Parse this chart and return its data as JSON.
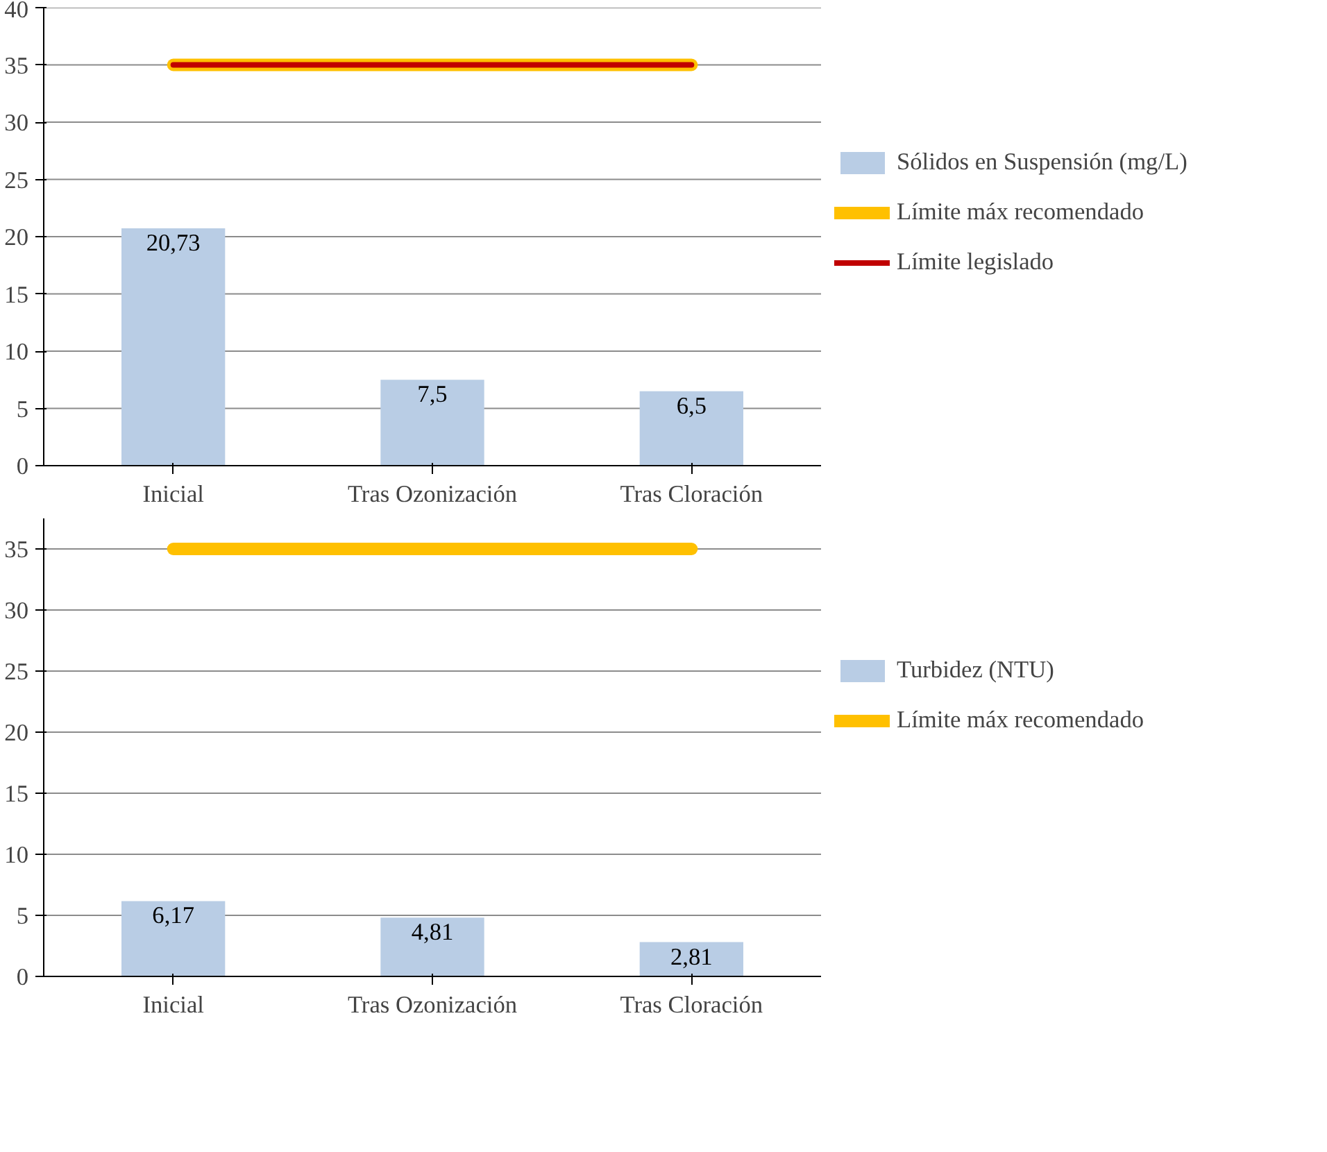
{
  "chart_data": [
    {
      "type": "bar",
      "categories": [
        "Inicial",
        "Tras Ozonización",
        "Tras Cloración"
      ],
      "ylim": [
        0,
        40
      ],
      "yticks": [
        0,
        5,
        10,
        15,
        20,
        25,
        30,
        35,
        40
      ],
      "grid": "y",
      "legend": "right",
      "series": [
        {
          "name": "Sólidos en Suspensión (mg/L)",
          "color": "#b9cde5",
          "values": [
            20.73,
            7.5,
            6.5
          ],
          "value_labels": [
            "20,73",
            "7,5",
            "6,5"
          ]
        },
        {
          "type": "line",
          "name": "Límite máx recomendado",
          "color": "#ffc000",
          "values": [
            35,
            35,
            35
          ]
        },
        {
          "type": "line",
          "name": "Límite legislado",
          "color": "#c00000",
          "values": [
            35,
            35,
            35
          ]
        }
      ]
    },
    {
      "type": "bar",
      "categories": [
        "Inicial",
        "Tras Ozonización",
        "Tras Cloración"
      ],
      "ylim": [
        0,
        37.5
      ],
      "yticks": [
        0,
        5,
        10,
        15,
        20,
        25,
        30,
        35
      ],
      "grid": "y",
      "legend": "right",
      "series": [
        {
          "name": "Turbidez (NTU)",
          "color": "#b9cde5",
          "values": [
            6.17,
            4.81,
            2.81
          ],
          "value_labels": [
            "6,17",
            "4,81",
            "2,81"
          ]
        },
        {
          "type": "line",
          "name": "Límite máx recomendado",
          "color": "#ffc000",
          "values": [
            35,
            35,
            35
          ]
        }
      ]
    }
  ]
}
